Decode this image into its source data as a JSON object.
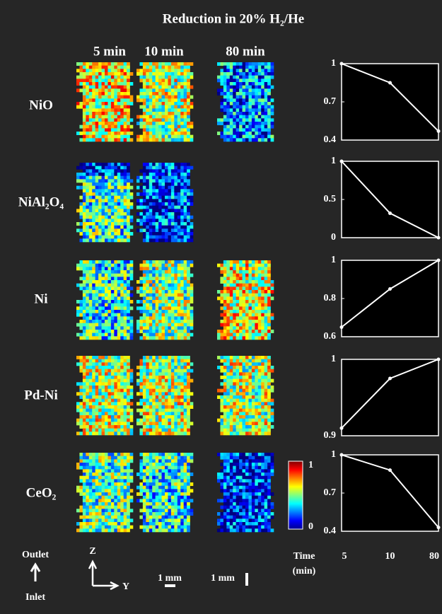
{
  "title": "Reduction in 20% H₂/He",
  "columns": [
    "5 min",
    "10 min",
    "80 min"
  ],
  "rows": [
    "NiO",
    "NiAl₂O₄",
    "Ni",
    "Pd-Ni",
    "CeO₂"
  ],
  "colorbar": {
    "max_label": "1",
    "min_label": "0"
  },
  "orientation": {
    "top": "Outlet",
    "bottom": "Inlet",
    "z": "Z",
    "y": "Y"
  },
  "scale_bars": [
    "1 mm",
    "1 mm"
  ],
  "chart_data": [
    {
      "type": "line",
      "values": [
        1,
        0.85,
        0.47
      ],
      "ylim": [
        0.4,
        1
      ],
      "yticks": [
        0.4,
        0.7,
        1
      ],
      "color": "#ffffff"
    },
    {
      "type": "line",
      "values": [
        1,
        0.32,
        0
      ],
      "ylim": [
        0,
        1
      ],
      "yticks": [
        0,
        0.5,
        1
      ],
      "color": "#ffffff"
    },
    {
      "type": "line",
      "values": [
        0.65,
        0.85,
        1
      ],
      "ylim": [
        0.6,
        1
      ],
      "yticks": [
        0.6,
        0.8,
        1
      ],
      "color": "#ffffff"
    },
    {
      "type": "line",
      "values": [
        0.91,
        0.975,
        1
      ],
      "ylim": [
        0.9,
        1
      ],
      "yticks": [
        0.9,
        1
      ],
      "color": "#ffffff"
    },
    {
      "type": "line",
      "values": [
        1,
        0.88,
        0.43
      ],
      "ylim": [
        0.4,
        1
      ],
      "yticks": [
        0.4,
        0.7,
        1
      ],
      "color": "#ffffff",
      "categories": [
        "5",
        "10",
        "80"
      ],
      "xlabel": [
        "Time",
        "(min)"
      ]
    }
  ]
}
